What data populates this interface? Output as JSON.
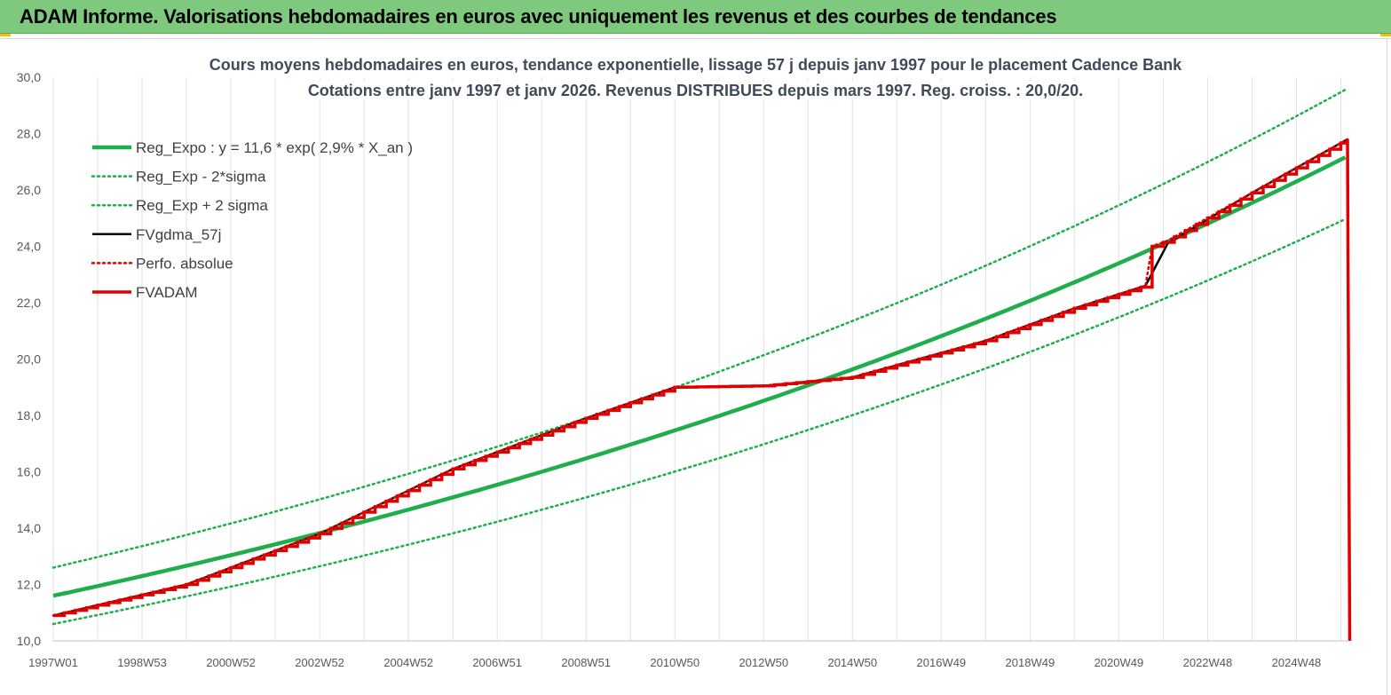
{
  "banner": {
    "title": "ADAM Informe. Valorisations hebdomadaires en euros avec uniquement les revenus et des courbes de tendances",
    "background": "#7ec97e"
  },
  "chart_data": {
    "type": "line",
    "title_line1": "Cours moyens hebdomadaires en euros, tendance exponentielle, lissage 57 j depuis janv 1997 pour le placement Cadence Bank",
    "title_line2": "Cotations entre janv 1997 et janv 2026. Revenus DISTRIBUES depuis mars 1997. Reg. croiss. : 20,0/20.",
    "xlabel": "",
    "ylabel": "",
    "x_range": [
      1997.0,
      2026.15
    ],
    "ylim": [
      10,
      30
    ],
    "y_ticks": [
      "10,0",
      "12,0",
      "14,0",
      "16,0",
      "18,0",
      "20,0",
      "22,0",
      "24,0",
      "26,0",
      "28,0",
      "30,0"
    ],
    "x_ticks": [
      {
        "x": 1997.0,
        "label": "1997W01"
      },
      {
        "x": 1999.0,
        "label": "1998W53"
      },
      {
        "x": 2001.0,
        "label": "2000W52"
      },
      {
        "x": 2003.0,
        "label": "2002W52"
      },
      {
        "x": 2005.0,
        "label": "2004W52"
      },
      {
        "x": 2007.0,
        "label": "2006W51"
      },
      {
        "x": 2009.0,
        "label": "2008W51"
      },
      {
        "x": 2011.0,
        "label": "2010W50"
      },
      {
        "x": 2013.0,
        "label": "2012W50"
      },
      {
        "x": 2015.0,
        "label": "2014W50"
      },
      {
        "x": 2017.0,
        "label": "2016W49"
      },
      {
        "x": 2019.0,
        "label": "2018W49"
      },
      {
        "x": 2021.0,
        "label": "2020W49"
      },
      {
        "x": 2023.0,
        "label": "2022W48"
      },
      {
        "x": 2025.0,
        "label": "2024W48"
      }
    ],
    "grid": "vertical",
    "legend_position": "top-left",
    "series": [
      {
        "name": "Reg_Expo : y = 11,6 * exp( 2,9% *  X_an )",
        "color": "#1fae4b",
        "style": "solid-thick",
        "points": [
          [
            1997.0,
            11.6
          ],
          [
            2000.0,
            12.7
          ],
          [
            2003.0,
            13.7
          ],
          [
            2006.0,
            15.1
          ],
          [
            2009.0,
            16.6
          ],
          [
            2012.0,
            18.1
          ],
          [
            2015.0,
            19.8
          ],
          [
            2018.0,
            21.6
          ],
          [
            2021.0,
            23.6
          ],
          [
            2024.0,
            25.8
          ],
          [
            2026.15,
            27.2
          ]
        ]
      },
      {
        "name": "Reg_Exp - 2*sigma",
        "color": "#1fae4b",
        "style": "dotted",
        "points": [
          [
            1997.0,
            10.6
          ],
          [
            2000.0,
            11.6
          ],
          [
            2003.0,
            12.6
          ],
          [
            2006.0,
            13.8
          ],
          [
            2009.0,
            15.2
          ],
          [
            2012.0,
            16.6
          ],
          [
            2015.0,
            18.2
          ],
          [
            2018.0,
            19.9
          ],
          [
            2021.0,
            21.7
          ],
          [
            2024.0,
            23.7
          ],
          [
            2026.15,
            25.0
          ]
        ]
      },
      {
        "name": "Reg_Exp + 2 sigma",
        "color": "#1fae4b",
        "style": "dotted",
        "points": [
          [
            1997.0,
            12.6
          ],
          [
            2000.0,
            13.8
          ],
          [
            2003.0,
            15.0
          ],
          [
            2006.0,
            16.4
          ],
          [
            2009.0,
            18.0
          ],
          [
            2012.0,
            19.7
          ],
          [
            2015.0,
            21.5
          ],
          [
            2018.0,
            23.4
          ],
          [
            2021.0,
            25.6
          ],
          [
            2024.0,
            28.0
          ],
          [
            2026.15,
            29.6
          ]
        ]
      },
      {
        "name": "FVgdma_57j",
        "color": "#000000",
        "style": "solid",
        "points": [
          [
            1997.0,
            10.9
          ],
          [
            2000.0,
            12.0
          ],
          [
            2003.0,
            13.8
          ],
          [
            2006.0,
            16.1
          ],
          [
            2009.0,
            17.9
          ],
          [
            2011.0,
            19.0
          ],
          [
            2013.0,
            19.05
          ],
          [
            2015.0,
            19.35
          ],
          [
            2018.0,
            20.65
          ],
          [
            2020.0,
            21.8
          ],
          [
            2021.6,
            22.6
          ],
          [
            2021.9,
            23.5
          ],
          [
            2022.1,
            24.1
          ],
          [
            2024.0,
            25.9
          ],
          [
            2026.15,
            27.8
          ]
        ]
      },
      {
        "name": "Perfo. absolue",
        "color": "#e00000",
        "style": "dotted",
        "points": [
          [
            1997.0,
            10.9
          ],
          [
            2000.0,
            12.0
          ],
          [
            2003.0,
            13.8
          ],
          [
            2006.0,
            16.1
          ],
          [
            2009.0,
            17.9
          ],
          [
            2011.0,
            19.0
          ],
          [
            2013.0,
            19.05
          ],
          [
            2015.0,
            19.35
          ],
          [
            2018.0,
            20.65
          ],
          [
            2020.0,
            21.8
          ],
          [
            2021.6,
            22.6
          ],
          [
            2021.75,
            24.0
          ],
          [
            2022.1,
            24.2
          ],
          [
            2024.0,
            25.9
          ],
          [
            2026.15,
            27.8
          ]
        ]
      },
      {
        "name": "FVADAM",
        "color": "#e00000",
        "style": "solid-thick-stepped",
        "points": [
          [
            1997.0,
            10.9
          ],
          [
            2000.0,
            12.0
          ],
          [
            2003.0,
            13.8
          ],
          [
            2006.0,
            16.1
          ],
          [
            2009.0,
            17.9
          ],
          [
            2011.0,
            19.0
          ],
          [
            2013.0,
            19.05
          ],
          [
            2015.0,
            19.35
          ],
          [
            2018.0,
            20.65
          ],
          [
            2020.0,
            21.8
          ],
          [
            2021.6,
            22.6
          ],
          [
            2021.75,
            24.0
          ],
          [
            2022.1,
            24.2
          ],
          [
            2024.0,
            25.9
          ],
          [
            2026.15,
            27.8
          ],
          [
            2026.2,
            10.0
          ]
        ]
      }
    ]
  }
}
